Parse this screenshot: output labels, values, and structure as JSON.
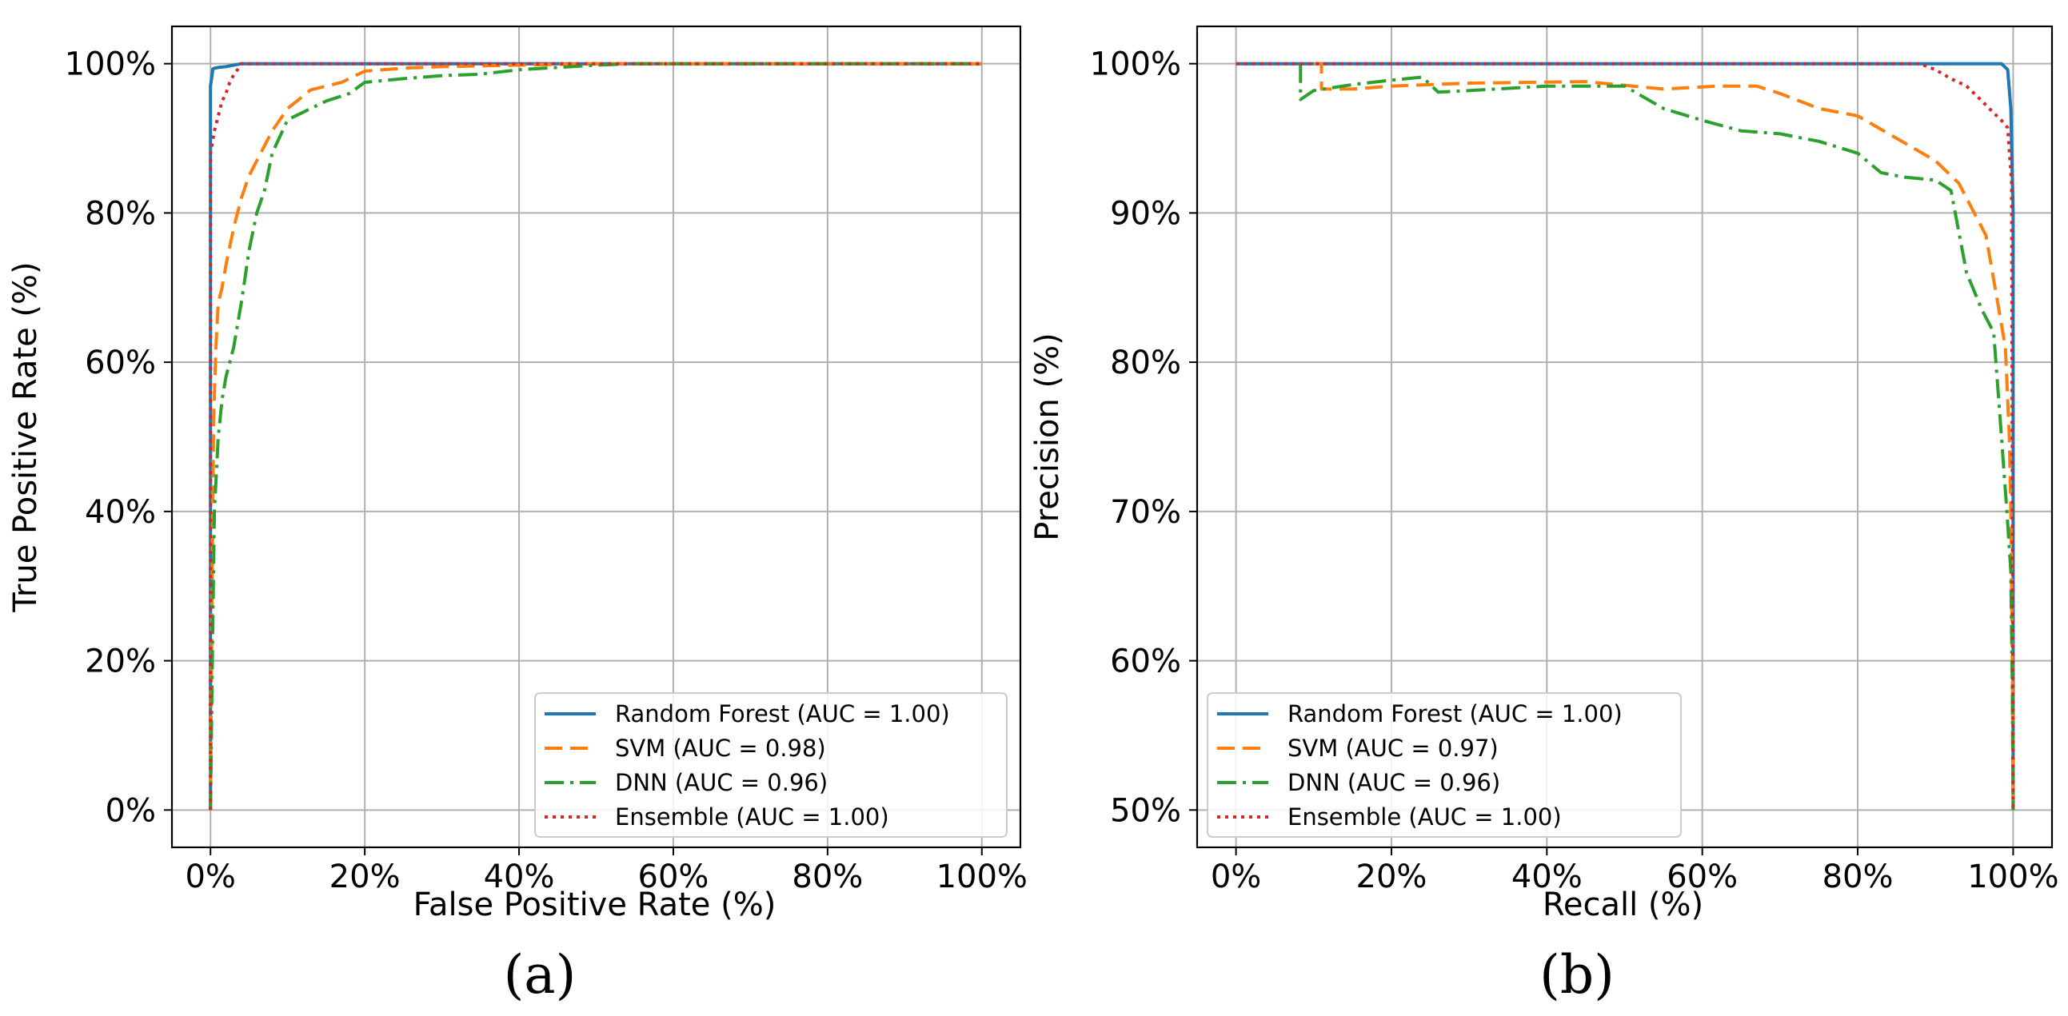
{
  "chart_data": [
    {
      "id": "a",
      "type": "line",
      "panel_label": "(a)",
      "xlabel": "False Positive Rate (%)",
      "ylabel": "True Positive Rate (%)",
      "xlim": [
        -5,
        105
      ],
      "ylim": [
        -5,
        105
      ],
      "xticks": [
        0,
        20,
        40,
        60,
        80,
        100
      ],
      "yticks": [
        0,
        20,
        40,
        60,
        80,
        100
      ],
      "xtick_labels": [
        "0%",
        "20%",
        "40%",
        "60%",
        "80%",
        "100%"
      ],
      "ytick_labels": [
        "0%",
        "20%",
        "40%",
        "60%",
        "80%",
        "100%"
      ],
      "grid": true,
      "legend_position": "lower-right",
      "series": [
        {
          "name": "Random Forest (AUC = 1.00)",
          "color": "#1f77b4",
          "style": "solid",
          "x": [
            0,
            0,
            0.2,
            0.3,
            0.5,
            1,
            2,
            4,
            100
          ],
          "y": [
            0,
            97,
            98.5,
            99.3,
            99.4,
            99.5,
            99.6,
            100,
            100
          ]
        },
        {
          "name": "SVM (AUC = 0.98)",
          "color": "#ff7f0e",
          "style": "dashed",
          "x": [
            0,
            0.2,
            0.4,
            0.7,
            1,
            1.5,
            2,
            3,
            4,
            5,
            6,
            8,
            10,
            13,
            17,
            20,
            25,
            30,
            40,
            50,
            100
          ],
          "y": [
            0,
            30,
            52,
            62,
            68,
            70,
            73,
            78,
            82,
            85,
            87,
            91,
            94,
            96.5,
            97.5,
            99,
            99.4,
            99.6,
            99.8,
            100,
            100
          ]
        },
        {
          "name": "DNN (AUC = 0.96)",
          "color": "#2ca02c",
          "style": "dashdot",
          "x": [
            0,
            0.3,
            0.5,
            1,
            1.5,
            2,
            3,
            4,
            5,
            6,
            7,
            8,
            10,
            12,
            15,
            18,
            20,
            25,
            30,
            35,
            40,
            45,
            50,
            55,
            100
          ],
          "y": [
            0,
            25,
            40,
            50,
            55,
            58,
            62,
            68,
            75,
            80,
            83,
            88,
            92.5,
            93.5,
            95,
            96,
            97.5,
            98,
            98.4,
            98.6,
            99.2,
            99.5,
            99.8,
            100,
            100
          ]
        },
        {
          "name": "Ensemble (AUC = 1.00)",
          "color": "#d62728",
          "style": "dotted",
          "x": [
            0,
            0,
            0.5,
            1,
            1.5,
            2,
            2.5,
            3,
            3.5,
            4,
            100
          ],
          "y": [
            0,
            88,
            91,
            93,
            95,
            96,
            97.5,
            98.5,
            99.2,
            100,
            100
          ]
        }
      ]
    },
    {
      "id": "b",
      "type": "line",
      "panel_label": "(b)",
      "xlabel": "Recall (%)",
      "ylabel": "Precision (%)",
      "xlim": [
        -5,
        105
      ],
      "ylim": [
        47.5,
        102.5
      ],
      "xticks": [
        0,
        20,
        40,
        60,
        80,
        100
      ],
      "yticks": [
        50,
        60,
        70,
        80,
        90,
        100
      ],
      "xtick_labels": [
        "0%",
        "20%",
        "40%",
        "60%",
        "80%",
        "100%"
      ],
      "ytick_labels": [
        "50%",
        "60%",
        "70%",
        "80%",
        "90%",
        "100%"
      ],
      "grid": true,
      "legend_position": "lower-left",
      "series": [
        {
          "name": "Random Forest (AUC = 1.00)",
          "color": "#1f77b4",
          "style": "solid",
          "x": [
            0,
            98.5,
            99.3,
            99.7,
            100,
            100
          ],
          "y": [
            100,
            100,
            99.6,
            97,
            90,
            50
          ]
        },
        {
          "name": "SVM (AUC = 0.97)",
          "color": "#ff7f0e",
          "style": "dashed",
          "x": [
            10,
            11,
            11,
            15,
            20,
            30,
            45,
            55,
            62,
            67,
            70,
            75,
            80,
            85,
            90,
            93,
            95,
            96.5,
            98,
            99,
            99.5,
            99.7,
            99.9,
            100
          ],
          "y": [
            100,
            100,
            98.3,
            98.3,
            98.5,
            98.7,
            98.8,
            98.3,
            98.5,
            98.5,
            98,
            97,
            96.5,
            95,
            93.5,
            92,
            90,
            88.5,
            84,
            81,
            75,
            70,
            60,
            50
          ]
        },
        {
          "name": "DNN (AUC = 0.96)",
          "color": "#2ca02c",
          "style": "dashdot",
          "x": [
            8.3,
            8.3,
            10,
            15,
            20,
            24,
            26,
            30,
            40,
            50,
            55,
            60,
            65,
            70,
            75,
            80,
            83,
            86,
            90,
            92,
            94,
            96,
            97.5,
            98.5,
            99.2,
            99.7,
            99.9,
            100
          ],
          "y": [
            100,
            97.6,
            98.2,
            98.6,
            98.9,
            99.1,
            98.1,
            98.2,
            98.5,
            98.5,
            97,
            96.2,
            95.5,
            95.3,
            94.8,
            94,
            92.7,
            92.4,
            92.2,
            91.5,
            86,
            83.5,
            82,
            75,
            70,
            66,
            58,
            50
          ]
        },
        {
          "name": "Ensemble (AUC = 1.00)",
          "color": "#d62728",
          "style": "dotted",
          "x": [
            0,
            88,
            90,
            92,
            94,
            96,
            97.5,
            98.5,
            99.3,
            99.8,
            100
          ],
          "y": [
            100,
            100,
            99.6,
            99,
            98.5,
            97.5,
            96.7,
            96.2,
            95.7,
            92,
            50
          ]
        }
      ]
    }
  ]
}
